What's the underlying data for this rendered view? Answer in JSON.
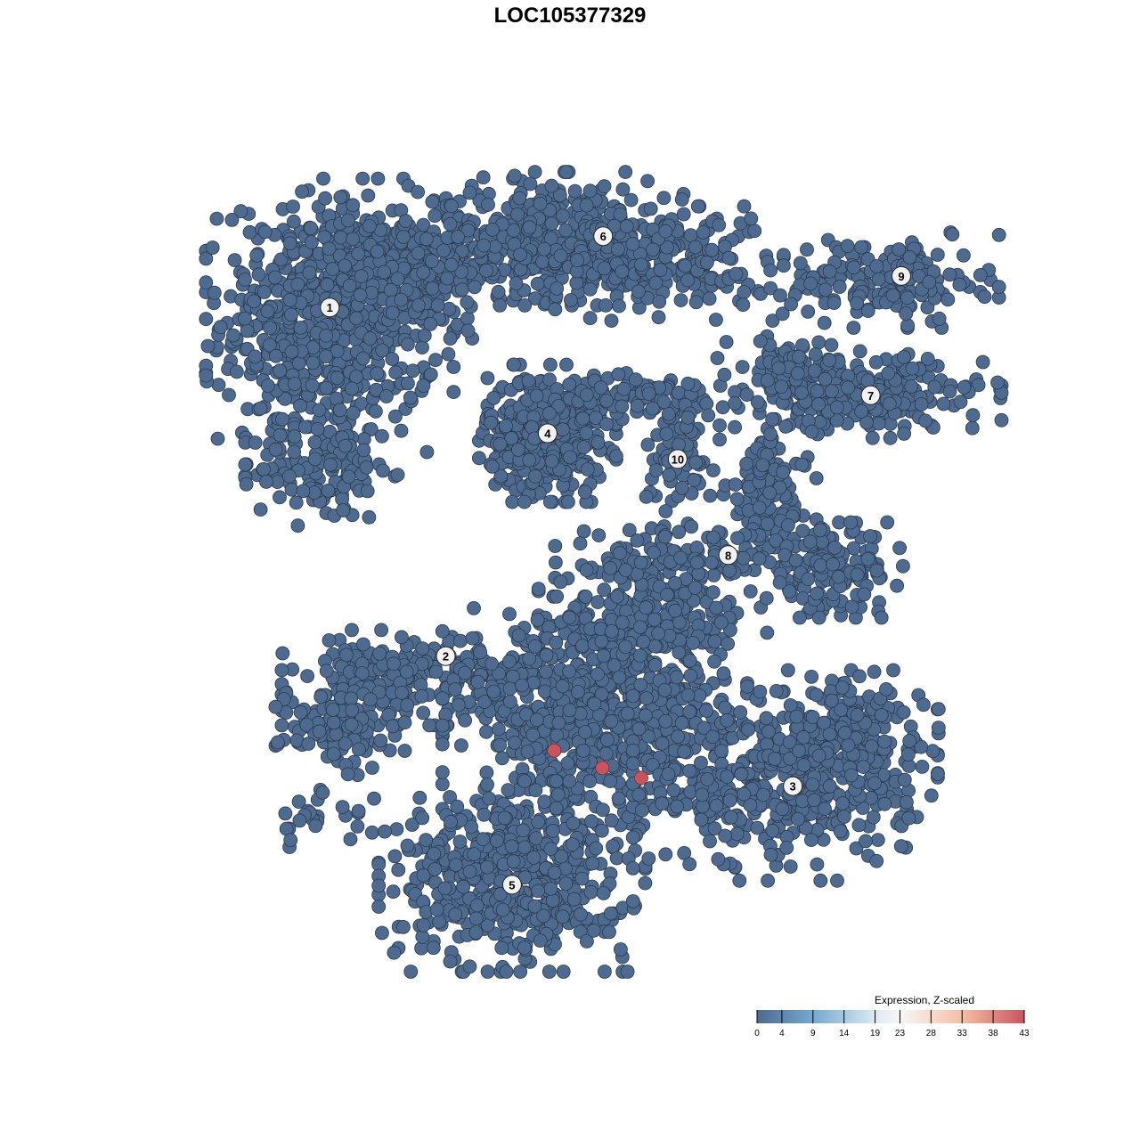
{
  "chart_data": {
    "type": "scatter",
    "title": "LOC105377329",
    "xlim": [
      -50,
      50
    ],
    "ylim": [
      -50,
      50
    ],
    "grid": false,
    "axes_visible": false,
    "point_color": "#4e6a8f",
    "point_stroke": "#2b3a4f",
    "highlight_color": "#c8545e",
    "blobs": [
      {
        "cluster": "1",
        "center": [
          -29,
          30
        ],
        "sd": [
          6.5,
          7.5
        ],
        "n": 650
      },
      {
        "cluster": "1",
        "center": [
          -20,
          36
        ],
        "sd": [
          6,
          3.5
        ],
        "n": 250
      },
      {
        "cluster": "1",
        "center": [
          -30,
          12
        ],
        "sd": [
          4,
          3
        ],
        "n": 120
      },
      {
        "cluster": "6",
        "center": [
          -2,
          40
        ],
        "sd": [
          8,
          3.5
        ],
        "n": 420
      },
      {
        "cluster": "6",
        "center": [
          12,
          37
        ],
        "sd": [
          6,
          3
        ],
        "n": 200
      },
      {
        "cluster": "4",
        "center": [
          -2.7,
          16.5
        ],
        "sd": [
          3.6,
          3.6
        ],
        "n": 380
      },
      {
        "cluster": "10",
        "center": [
          13,
          14
        ],
        "sd": [
          2.2,
          3
        ],
        "n": 70
      },
      {
        "cluster": "10",
        "center": [
          9,
          21
        ],
        "sd": [
          5,
          1.2
        ],
        "n": 80
      },
      {
        "cluster": "9",
        "center": [
          38,
          35
        ],
        "sd": [
          6,
          2.5
        ],
        "n": 170
      },
      {
        "cluster": "7",
        "center": [
          36,
          21
        ],
        "sd": [
          7,
          2.2
        ],
        "n": 240
      },
      {
        "cluster": "7",
        "center": [
          27,
          24
        ],
        "sd": [
          4,
          2
        ],
        "n": 90
      },
      {
        "cluster": "8",
        "center": [
          24,
          9
        ],
        "sd": [
          2.5,
          4
        ],
        "n": 120
      },
      {
        "cluster": "8",
        "center": [
          31,
          0
        ],
        "sd": [
          4,
          2.5
        ],
        "n": 160
      },
      {
        "cluster": "8",
        "center": [
          12,
          1
        ],
        "sd": [
          6,
          2
        ],
        "n": 110
      },
      {
        "cluster": "8",
        "center": [
          10,
          -6
        ],
        "sd": [
          6,
          3
        ],
        "n": 170
      },
      {
        "cluster": "2",
        "center": [
          -21,
          -13
        ],
        "sd": [
          6,
          2.5
        ],
        "n": 200
      },
      {
        "cluster": "2",
        "center": [
          -28,
          -19
        ],
        "sd": [
          3.5,
          2.5
        ],
        "n": 110
      },
      {
        "cluster": "2",
        "center": [
          -30,
          -30
        ],
        "sd": [
          3,
          1.5
        ],
        "n": 25
      },
      {
        "cluster": "5",
        "center": [
          3,
          -17
        ],
        "sd": [
          8,
          6
        ],
        "n": 700
      },
      {
        "cluster": "5",
        "center": [
          -7,
          -37
        ],
        "sd": [
          7,
          5
        ],
        "n": 520
      },
      {
        "cluster": "3",
        "center": [
          26,
          -26
        ],
        "sd": [
          8,
          5
        ],
        "n": 420
      },
      {
        "cluster": "3",
        "center": [
          33,
          -19
        ],
        "sd": [
          5,
          3
        ],
        "n": 180
      }
    ],
    "cluster_labels": [
      {
        "label": "1",
        "x": -29,
        "y": 31.7
      },
      {
        "label": "2",
        "x": -15,
        "y": -10.4
      },
      {
        "label": "3",
        "x": 26.9,
        "y": -26.1
      },
      {
        "label": "4",
        "x": -2.7,
        "y": 16.5
      },
      {
        "label": "5",
        "x": -7,
        "y": -38
      },
      {
        "label": "6",
        "x": 4,
        "y": 40.3
      },
      {
        "label": "7",
        "x": 36.3,
        "y": 21.1
      },
      {
        "label": "8",
        "x": 19.1,
        "y": 1.8
      },
      {
        "label": "9",
        "x": 40,
        "y": 35.5
      },
      {
        "label": "10",
        "x": 13,
        "y": 13.4
      }
    ],
    "highlighted_points": [
      {
        "x": -1.9,
        "y": -21.8,
        "value": 43
      },
      {
        "x": 3.9,
        "y": -23.9,
        "value": 43
      },
      {
        "x": 8.6,
        "y": -25.1,
        "value": 43
      }
    ],
    "legend": {
      "title": "Expression, Z-scaled",
      "placement": "bottom-right",
      "ticks": [
        "0",
        "4",
        "9",
        "14",
        "19",
        "23",
        "28",
        "33",
        "38",
        "43"
      ],
      "range": [
        0,
        43
      ],
      "color_stops": [
        {
          "value": 0,
          "color": "#4d6a90"
        },
        {
          "value": 9,
          "color": "#74a9cf"
        },
        {
          "value": 19,
          "color": "#dce9f2"
        },
        {
          "value": 23,
          "color": "#f7f7f7"
        },
        {
          "value": 33,
          "color": "#f5bfa5"
        },
        {
          "value": 43,
          "color": "#c8545e"
        }
      ]
    }
  }
}
